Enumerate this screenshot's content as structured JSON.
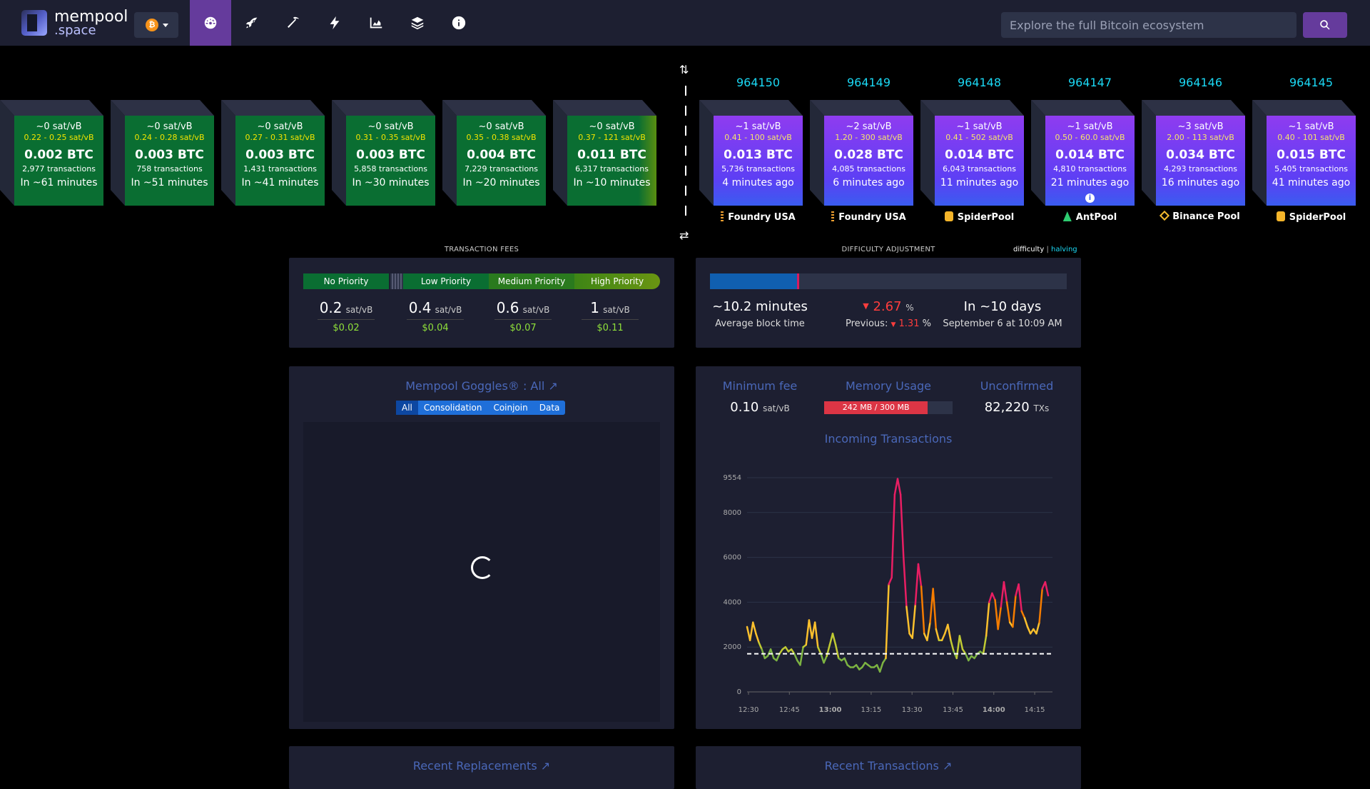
{
  "header": {
    "logo": {
      "line1": "mempool",
      "line2": ".space"
    },
    "network_symbol": "₿",
    "nav": [
      {
        "name": "dashboard-icon",
        "active": true
      },
      {
        "name": "rocket-icon",
        "active": false
      },
      {
        "name": "pickaxe-icon",
        "active": false
      },
      {
        "name": "lightning-icon",
        "active": false
      },
      {
        "name": "chart-area-icon",
        "active": false
      },
      {
        "name": "layers-icon",
        "active": false
      },
      {
        "name": "info-icon",
        "active": false
      }
    ],
    "search_placeholder": "Explore the full Bitcoin ecosystem"
  },
  "mempool_blocks": [
    {
      "fee": "~0 sat/vB",
      "range": "0.22 - 0.25 sat/vB",
      "size": "0.002 BTC",
      "tx": "2,977 transactions",
      "time": "In ~61 minutes"
    },
    {
      "fee": "~0 sat/vB",
      "range": "0.24 - 0.28 sat/vB",
      "size": "0.003 BTC",
      "tx": "758 transactions",
      "time": "In ~51 minutes"
    },
    {
      "fee": "~0 sat/vB",
      "range": "0.27 - 0.31 sat/vB",
      "size": "0.003 BTC",
      "tx": "1,431 transactions",
      "time": "In ~41 minutes"
    },
    {
      "fee": "~0 sat/vB",
      "range": "0.31 - 0.35 sat/vB",
      "size": "0.003 BTC",
      "tx": "5,858 transactions",
      "time": "In ~30 minutes"
    },
    {
      "fee": "~0 sat/vB",
      "range": "0.35 - 0.38 sat/vB",
      "size": "0.004 BTC",
      "tx": "7,229 transactions",
      "time": "In ~20 minutes"
    },
    {
      "fee": "~0 sat/vB",
      "range": "0.37 - 121 sat/vB",
      "size": "0.011 BTC",
      "tx": "6,317 transactions",
      "time": "In ~10 minutes"
    }
  ],
  "mined_blocks": [
    {
      "height": "964150",
      "fee": "~1 sat/vB",
      "range": "0.41 - 100 sat/vB",
      "size": "0.013 BTC",
      "tx": "5,736 transactions",
      "time": "4 minutes ago",
      "pool": "Foundry USA",
      "pool_icon": "foundry-icon",
      "pool_color": "#f0a030"
    },
    {
      "height": "964149",
      "fee": "~2 sat/vB",
      "range": "1.20 - 300 sat/vB",
      "size": "0.028 BTC",
      "tx": "4,085 transactions",
      "time": "6 minutes ago",
      "pool": "Foundry USA",
      "pool_icon": "foundry-icon",
      "pool_color": "#f0a030"
    },
    {
      "height": "964148",
      "fee": "~1 sat/vB",
      "range": "0.41 - 502 sat/vB",
      "size": "0.014 BTC",
      "tx": "6,043 transactions",
      "time": "11 minutes ago",
      "pool": "SpiderPool",
      "pool_icon": "spiderpool-icon",
      "pool_color": "#f5b52a"
    },
    {
      "height": "964147",
      "fee": "~1 sat/vB",
      "range": "0.50 - 60.0 sat/vB",
      "size": "0.014 BTC",
      "tx": "4,810 transactions",
      "time": "21 minutes ago",
      "pool": "AntPool",
      "pool_icon": "antpool-icon",
      "pool_color": "#2ecc71"
    },
    {
      "height": "964146",
      "fee": "~3 sat/vB",
      "range": "2.00 - 113 sat/vB",
      "size": "0.034 BTC",
      "tx": "4,293 transactions",
      "time": "16 minutes ago",
      "pool": "Binance Pool",
      "pool_icon": "binance-icon",
      "pool_color": "#f3ba2f"
    },
    {
      "height": "964145",
      "fee": "~1 sat/vB",
      "range": "0.40 - 101 sat/vB",
      "size": "0.015 BTC",
      "tx": "5,405 transactions",
      "time": "41 minutes ago",
      "pool": "SpiderPool",
      "pool_icon": "spiderpool-icon",
      "pool_color": "#f5b52a"
    }
  ],
  "fees": {
    "title": "TRANSACTION FEES",
    "labels": [
      "No Priority",
      "Low Priority",
      "Medium Priority",
      "High Priority"
    ],
    "values": [
      {
        "v": "0.2",
        "u": "sat/vB",
        "usd": "$0.02"
      },
      {
        "v": "0.4",
        "u": "sat/vB",
        "usd": "$0.04"
      },
      {
        "v": "0.6",
        "u": "sat/vB",
        "usd": "$0.07"
      },
      {
        "v": "1",
        "u": "sat/vB",
        "usd": "$0.11"
      }
    ]
  },
  "difficulty": {
    "title": "DIFFICULTY ADJUSTMENT",
    "toggle_difficulty": "difficulty",
    "toggle_sep": "|",
    "toggle_halving": "halving",
    "progress": 0.25,
    "avg_block_time": "~10.2 minutes",
    "avg_block_time_label": "Average block time",
    "change": "2.67",
    "change_unit": "%",
    "previous_label": "Previous:",
    "previous": "1.31",
    "previous_unit": "%",
    "eta": "In ~10 days",
    "eta_date": "September 6 at 10:09 AM"
  },
  "goggles": {
    "title": "Mempool Goggles® : All",
    "filters": [
      "All",
      "Consolidation",
      "Coinjoin",
      "Data"
    ],
    "selected": "All"
  },
  "stats": {
    "min_fee_label": "Minimum fee",
    "min_fee": "0.10",
    "min_fee_unit": "sat/vB",
    "memory_label": "Memory Usage",
    "memory_text": "242 MB / 300 MB",
    "memory_fraction": 0.807,
    "unconfirmed_label": "Unconfirmed",
    "unconfirmed": "82,220",
    "unconfirmed_unit": "TXs",
    "incoming_title": "Incoming Transactions"
  },
  "chart_data": {
    "type": "line",
    "y_ticks": [
      "0",
      "2000",
      "4000",
      "6000",
      "8000",
      "9554"
    ],
    "x_ticks": [
      "12:30",
      "12:45",
      "13:00",
      "13:15",
      "13:30",
      "13:45",
      "14:00",
      "14:15"
    ],
    "ylim": [
      0,
      9554
    ],
    "threshold": 1700,
    "values": [
      2900,
      2300,
      3100,
      2600,
      2200,
      1900,
      1500,
      1600,
      1900,
      1500,
      1400,
      1700,
      1900,
      2000,
      1800,
      1900,
      1700,
      1400,
      1200,
      2000,
      2100,
      3200,
      2400,
      3100,
      2000,
      1700,
      1300,
      1600,
      2100,
      2600,
      2100,
      1500,
      1400,
      1500,
      1200,
      1100,
      1100,
      1200,
      1000,
      1100,
      1300,
      1200,
      1100,
      1100,
      1200,
      900,
      1300,
      1500,
      4800,
      5100,
      8800,
      9500,
      8800,
      6000,
      3800,
      2600,
      2400,
      3900,
      5700,
      4700,
      2600,
      2300,
      3100,
      4600,
      2800,
      2300,
      2300,
      2600,
      3000,
      2300,
      1800,
      1500,
      2500,
      1900,
      1700,
      1400,
      1600,
      1500,
      1700,
      1800,
      1700,
      2500,
      4000,
      4400,
      4100,
      2800,
      3800,
      4900,
      4000,
      3100,
      2900,
      4300,
      4800,
      3600,
      3300,
      2900,
      2600,
      2800,
      2600,
      3100,
      4600,
      4900,
      4300
    ]
  },
  "bottom": {
    "left_title": "Recent Replacements",
    "right_title": "Recent Transactions"
  }
}
